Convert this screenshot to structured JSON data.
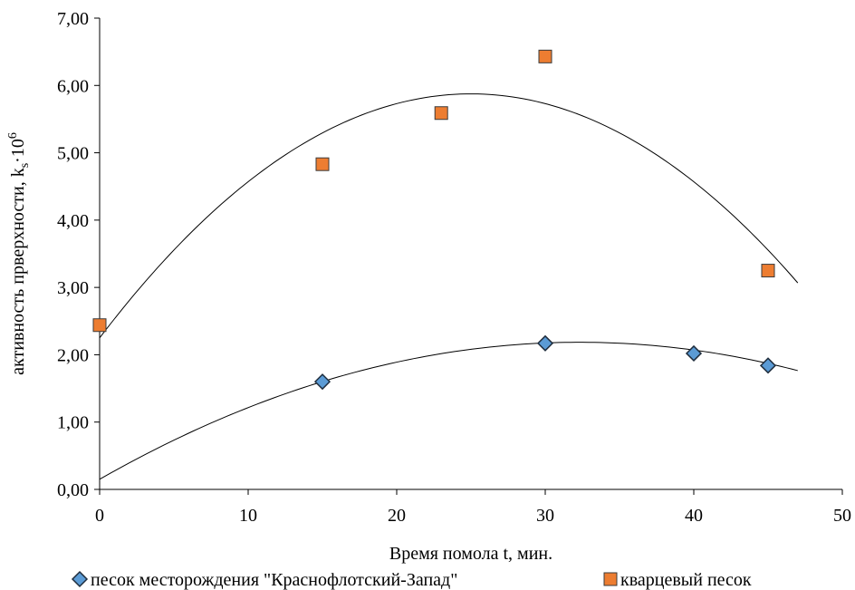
{
  "chart_data": {
    "type": "scatter",
    "xlabel": "Время помола t, мин.",
    "ylabel": {
      "prefix": "активность прверхности, k",
      "sub": "s",
      "mid": "·10",
      "sup": "6"
    },
    "xlim": [
      0,
      50
    ],
    "ylim": [
      0,
      7
    ],
    "x_ticks": [
      0,
      10,
      20,
      30,
      40,
      50
    ],
    "x_tick_labels": [
      "0",
      "10",
      "20",
      "30",
      "40",
      "50"
    ],
    "y_ticks": [
      0,
      1,
      2,
      3,
      4,
      5,
      6,
      7
    ],
    "y_tick_labels": [
      "0,00",
      "1,00",
      "2,00",
      "3,00",
      "4,00",
      "5,00",
      "6,00",
      "7,00"
    ],
    "grid": false,
    "legend_position": "bottom",
    "series": [
      {
        "name": "песок месторождения \"Краснофлотский-Запад\"",
        "marker": "diamond",
        "color": "#5b9bd5",
        "points": [
          [
            15,
            1.6
          ],
          [
            30,
            2.17
          ],
          [
            40,
            2.02
          ],
          [
            45,
            1.84
          ]
        ],
        "trendline": {
          "type": "poly2",
          "x_range": [
            0,
            47
          ],
          "coefficients": [
            0.15,
            0.126,
            -0.00195
          ]
        }
      },
      {
        "name": "кварцевый песок",
        "marker": "square",
        "color": "#ed7d31",
        "points": [
          [
            0,
            2.44
          ],
          [
            15,
            4.83
          ],
          [
            23,
            5.59
          ],
          [
            30,
            6.43
          ],
          [
            45,
            3.25
          ]
        ],
        "trendline": {
          "type": "poly2",
          "x_range": [
            0,
            47
          ],
          "coefficients": [
            2.25,
            0.29,
            -0.0058
          ]
        }
      }
    ]
  }
}
